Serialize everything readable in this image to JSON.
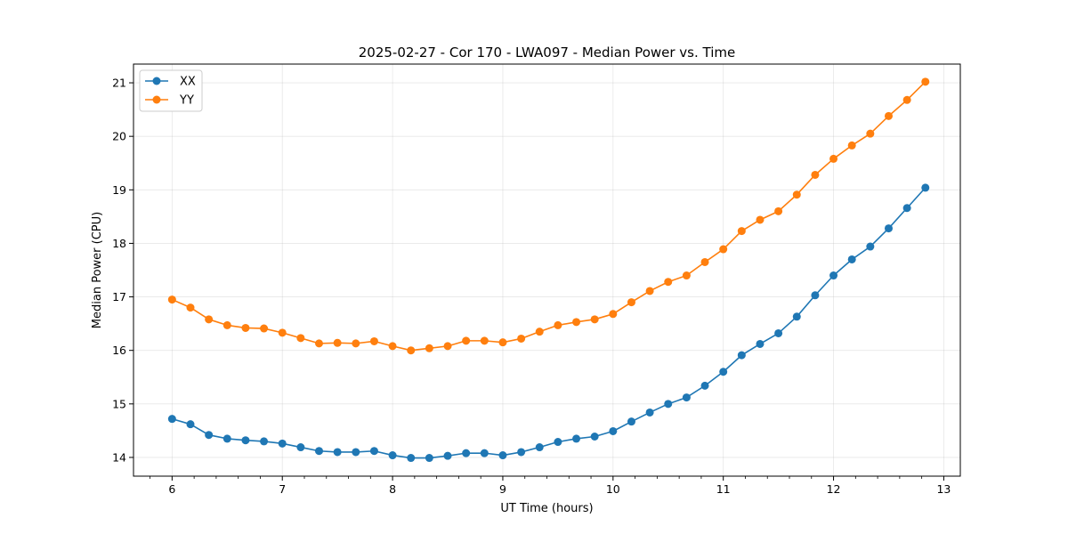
{
  "chart_data": {
    "type": "line",
    "title": "2025-02-27 - Cor 170 - LWA097 - Median Power vs. Time",
    "xlabel": "UT Time (hours)",
    "ylabel": "Median Power (CPU)",
    "xlim": [
      5.65,
      13.15
    ],
    "ylim": [
      13.65,
      21.35
    ],
    "xticks": [
      6,
      7,
      8,
      9,
      10,
      11,
      12,
      13
    ],
    "yticks": [
      14,
      15,
      16,
      17,
      18,
      19,
      20,
      21
    ],
    "grid": true,
    "legend_position": "upper-left",
    "x": [
      6.0,
      6.1667,
      6.3333,
      6.5,
      6.6667,
      6.8333,
      7.0,
      7.1667,
      7.3333,
      7.5,
      7.6667,
      7.8333,
      8.0,
      8.1667,
      8.3333,
      8.5,
      8.6667,
      8.8333,
      9.0,
      9.1667,
      9.3333,
      9.5,
      9.6667,
      9.8333,
      10.0,
      10.1667,
      10.3333,
      10.5,
      10.6667,
      10.8333,
      11.0,
      11.1667,
      11.3333,
      11.5,
      11.6667,
      11.8333,
      12.0,
      12.1667,
      12.3333,
      12.5,
      12.6667,
      12.8333
    ],
    "series": [
      {
        "name": "XX",
        "color": "#1f77b4",
        "values": [
          14.72,
          14.62,
          14.42,
          14.35,
          14.32,
          14.3,
          14.26,
          14.19,
          14.12,
          14.1,
          14.1,
          14.12,
          14.04,
          13.99,
          13.99,
          14.03,
          14.08,
          14.08,
          14.04,
          14.1,
          14.19,
          14.29,
          14.35,
          14.39,
          14.49,
          14.67,
          14.84,
          15.0,
          15.12,
          15.34,
          15.6,
          15.91,
          16.12,
          16.32,
          16.63,
          17.03,
          17.4,
          17.7,
          17.94,
          18.28,
          18.66,
          19.04
        ]
      },
      {
        "name": "YY",
        "color": "#ff7f0e",
        "values": [
          16.95,
          16.8,
          16.58,
          16.47,
          16.42,
          16.41,
          16.33,
          16.23,
          16.13,
          16.14,
          16.13,
          16.17,
          16.08,
          16.0,
          16.04,
          16.08,
          16.18,
          16.18,
          16.15,
          16.22,
          16.35,
          16.47,
          16.53,
          16.58,
          16.68,
          16.9,
          17.11,
          17.28,
          17.4,
          17.65,
          17.89,
          18.23,
          18.44,
          18.6,
          18.91,
          19.28,
          19.58,
          19.83,
          20.05,
          20.38,
          20.68,
          21.02
        ]
      }
    ]
  }
}
